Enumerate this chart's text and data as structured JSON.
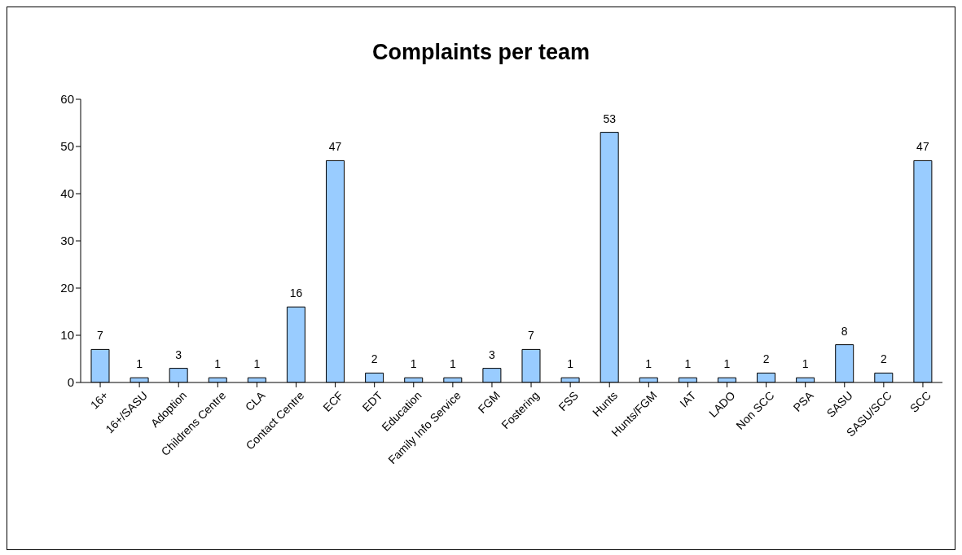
{
  "chart_data": {
    "type": "bar",
    "title": "Complaints per team",
    "categories": [
      "16+",
      "16+/SASU",
      "Adoption",
      "Childrens Centre",
      "CLA",
      "Contact Centre",
      "ECF",
      "EDT",
      "Education",
      "Family Info Service",
      "FGM",
      "Fostering",
      "FSS",
      "Hunts",
      "Hunts/FGM",
      "IAT",
      "LADO",
      "Non SCC",
      "PSA",
      "SASU",
      "SASU/SCC",
      "SCC"
    ],
    "values": [
      7,
      1,
      3,
      1,
      1,
      16,
      47,
      2,
      1,
      1,
      3,
      7,
      1,
      53,
      1,
      1,
      1,
      2,
      1,
      8,
      2,
      47
    ],
    "color": "#99ccff",
    "ylim": [
      0,
      60
    ],
    "yticks": [
      0,
      10,
      20,
      30,
      40,
      50,
      60
    ],
    "grid": false,
    "legend": false,
    "data_labels": true
  }
}
